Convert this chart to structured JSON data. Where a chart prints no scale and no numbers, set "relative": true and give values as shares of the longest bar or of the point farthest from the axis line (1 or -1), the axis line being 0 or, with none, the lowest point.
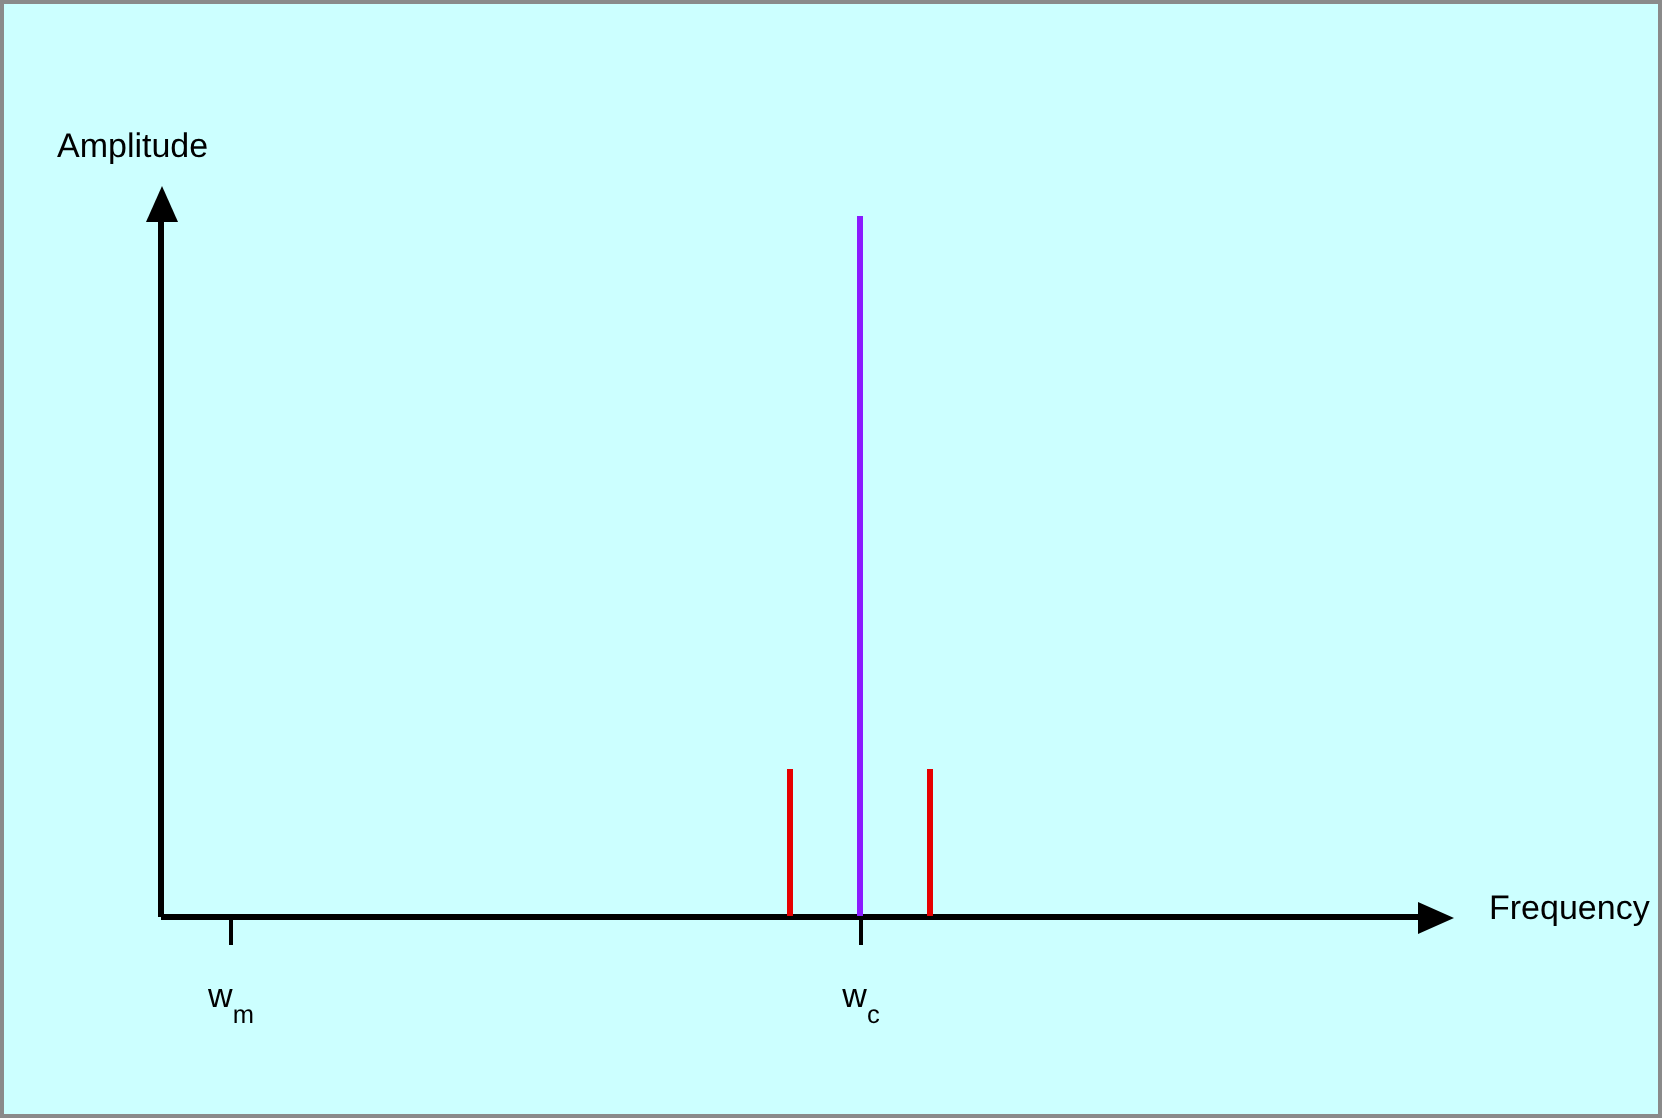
{
  "chart_data": {
    "type": "bar",
    "relative": true,
    "xlabel": "Frequency",
    "ylabel": "Amplitude",
    "categories": [
      "w$_{m}$",
      null,
      null,
      null,
      null,
      null,
      null,
      null,
      null,
      "w$_{c}$",
      null,
      null,
      null,
      null,
      null,
      null,
      null
    ],
    "values": [
      null,
      null,
      null,
      null,
      null,
      null,
      null,
      null,
      0.21,
      1,
      0.21,
      null,
      null,
      null,
      null,
      null,
      null
    ],
    "colors": [
      null,
      null,
      null,
      null,
      null,
      null,
      null,
      null,
      "#e60000",
      "#8a1aff",
      "#e60000",
      null,
      null,
      null,
      null,
      null,
      null
    ],
    "grid": false,
    "legend": false
  }
}
